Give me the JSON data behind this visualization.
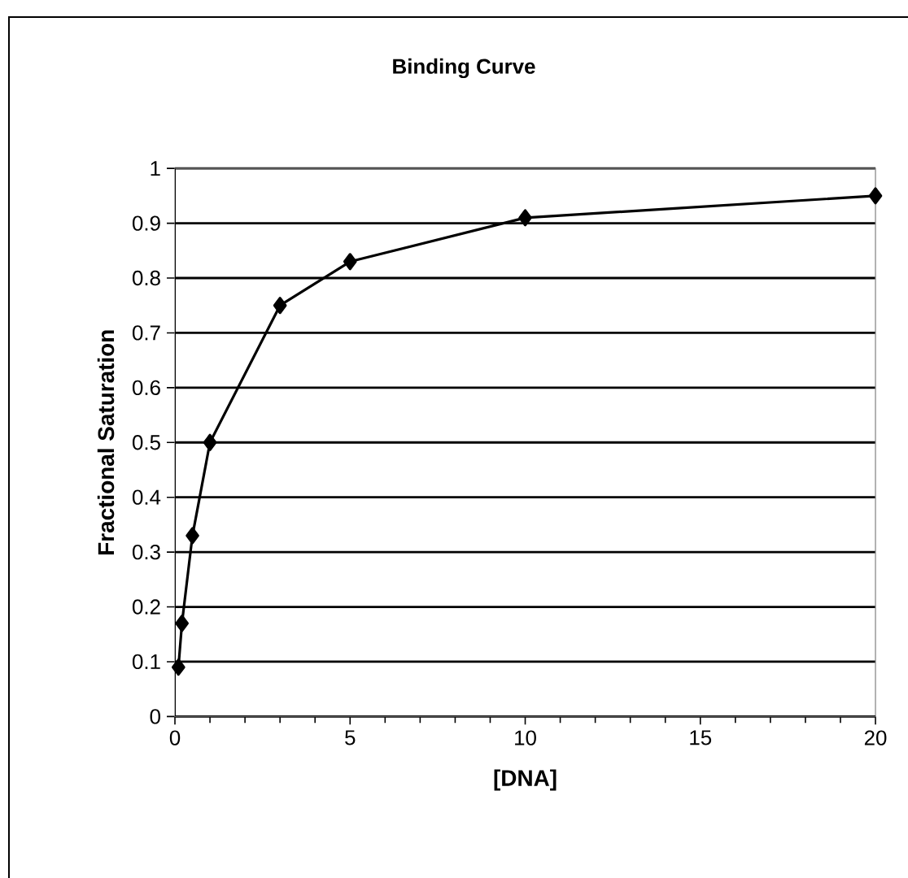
{
  "chart_data": {
    "type": "line",
    "title": "Binding Curve",
    "xlabel": "[DNA]",
    "ylabel": "Fractional Saturation",
    "x": [
      0.1,
      0.2,
      0.5,
      1,
      3,
      5,
      10,
      20
    ],
    "series": [
      {
        "color": "#000000",
        "values": [
          0.09,
          0.17,
          0.33,
          0.5,
          0.75,
          0.83,
          0.91,
          0.95
        ]
      }
    ],
    "xlim": [
      0,
      20
    ],
    "ylim": [
      0,
      1
    ],
    "xticks": [
      0,
      5,
      10,
      15,
      20
    ],
    "yticks": [
      0,
      0.1,
      0.2,
      0.3,
      0.4,
      0.5,
      0.6,
      0.7,
      0.8,
      0.9,
      1
    ],
    "grid": "y",
    "marker": "diamond",
    "line_style": "solid"
  }
}
